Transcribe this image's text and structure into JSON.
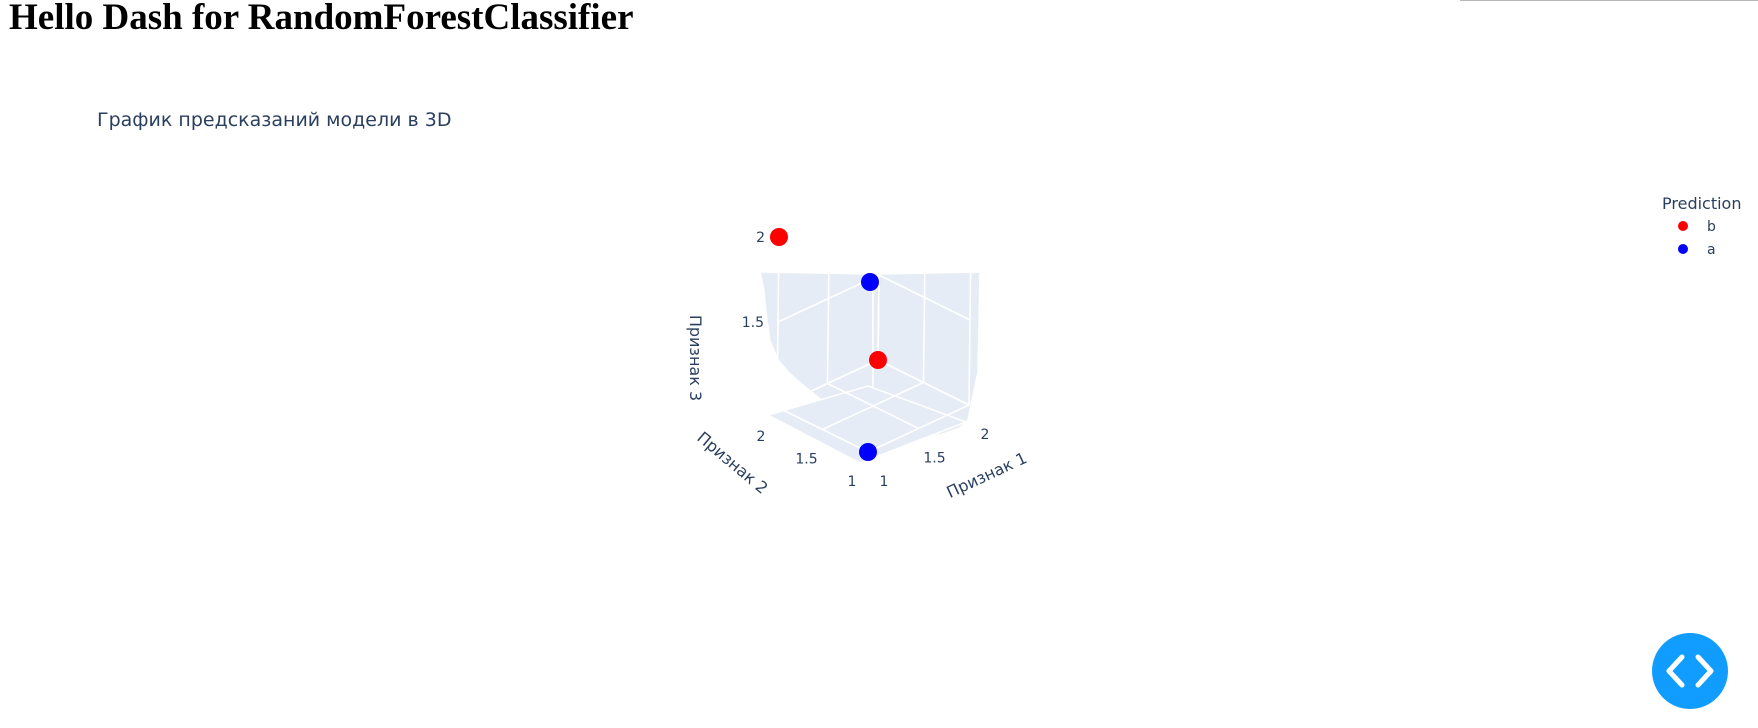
{
  "page": {
    "title": "Hello Dash for RandomForestClassifier"
  },
  "chart_data": {
    "type": "scatter3d",
    "title": "График предсказаний модели в 3D",
    "axes": {
      "x": {
        "title": "Признак 1",
        "ticks": [
          "1",
          "1.5",
          "2"
        ],
        "range": [
          1,
          2
        ]
      },
      "y": {
        "title": "Признак 2",
        "ticks": [
          "1",
          "1.5",
          "2"
        ],
        "range": [
          1,
          2
        ]
      },
      "z": {
        "title": "Признак 3",
        "ticks": [
          "1.5",
          "2"
        ],
        "range": [
          1,
          2
        ]
      }
    },
    "legend": {
      "title": "Prediction",
      "placement": "top-right",
      "entries": [
        {
          "name": "b",
          "color": "#ff0000"
        },
        {
          "name": "a",
          "color": "#0000ff"
        }
      ]
    },
    "series": [
      {
        "name": "b",
        "color": "#ff0000",
        "points": [
          {
            "x": 1,
            "y": 2,
            "z": 2
          },
          {
            "x": 2,
            "y": 2,
            "z": 1
          }
        ]
      },
      {
        "name": "a",
        "color": "#0000ff",
        "points": [
          {
            "x": 1,
            "y": 1,
            "z": 2
          },
          {
            "x": 1,
            "y": 1,
            "z": 1
          }
        ]
      }
    ],
    "grid": true
  },
  "code_button": {
    "icon": "code-icon",
    "color": "#119dff"
  }
}
